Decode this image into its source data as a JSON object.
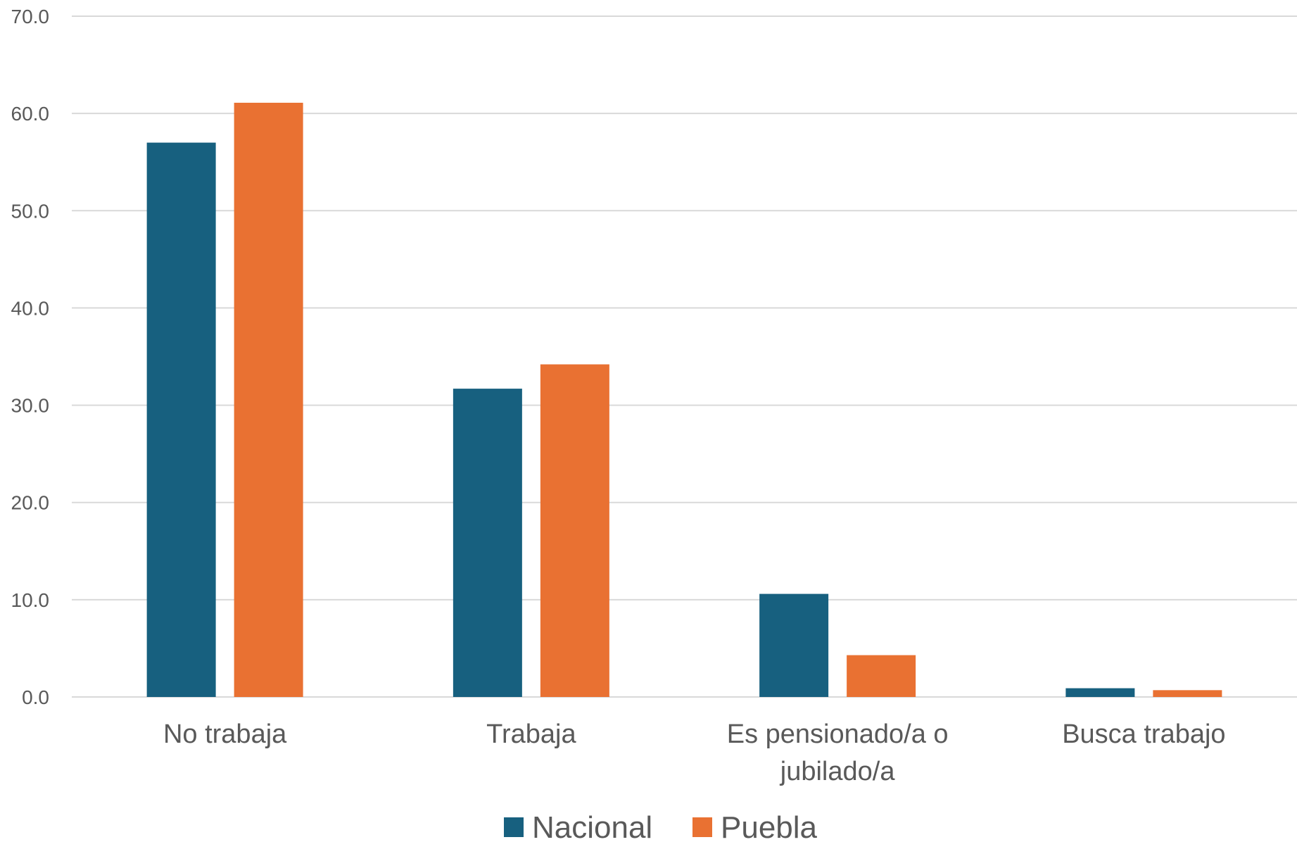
{
  "chart_data": {
    "type": "bar",
    "title": "",
    "xlabel": "",
    "ylabel": "",
    "categories": [
      [
        "No trabaja"
      ],
      [
        "Trabaja"
      ],
      [
        "Es pensionado/a o",
        "jubilado/a"
      ],
      [
        "Busca trabajo"
      ]
    ],
    "series": [
      {
        "name": "Nacional",
        "color": "#17607F",
        "values": [
          57.0,
          31.7,
          10.6,
          0.9
        ]
      },
      {
        "name": "Puebla",
        "color": "#E97132",
        "values": [
          61.1,
          34.2,
          4.3,
          0.7
        ]
      }
    ],
    "ylim": [
      0,
      70
    ],
    "yticks": [
      "0.0",
      "10.0",
      "20.0",
      "30.0",
      "40.0",
      "50.0",
      "60.0",
      "70.0"
    ],
    "ytick_values": [
      0,
      10,
      20,
      30,
      40,
      50,
      60,
      70
    ],
    "grid": true,
    "legend_position": "bottom"
  }
}
